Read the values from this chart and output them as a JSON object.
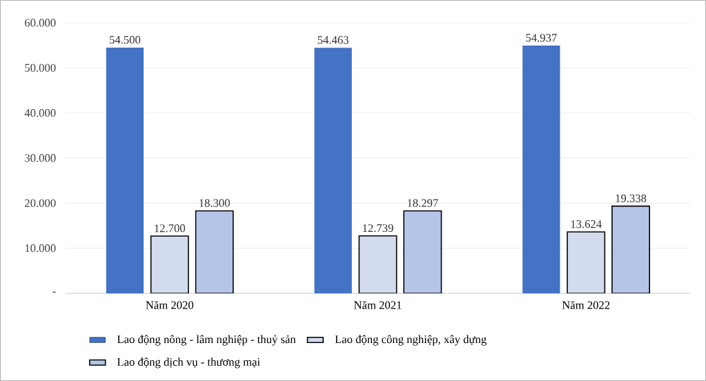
{
  "chart_data": {
    "type": "bar",
    "categories": [
      "Năm 2020",
      "Năm 2021",
      "Năm 2022"
    ],
    "series": [
      {
        "name": "Lao động nông - lâm nghiệp - thuỷ sản",
        "color": "#4472c4",
        "values": [
          54500,
          54463,
          54937
        ],
        "value_labels": [
          "54.500",
          "54.463",
          "54.937"
        ]
      },
      {
        "name": "Lao động công nghiệp, xây dựng",
        "color": "#d3dcef",
        "values": [
          12700,
          12739,
          13624
        ],
        "value_labels": [
          "12.700",
          "12.739",
          "13.624"
        ]
      },
      {
        "name": "Lao động dịch vụ - thương mại",
        "color": "#b4c5e8",
        "values": [
          18300,
          18297,
          19338
        ],
        "value_labels": [
          "18.300",
          "18.297",
          "19.338"
        ]
      }
    ],
    "ylim": [
      0,
      60000
    ],
    "yticks": [
      {
        "value": 0,
        "label": "-"
      },
      {
        "value": 10000,
        "label": "10.000"
      },
      {
        "value": 20000,
        "label": "20.000"
      },
      {
        "value": 30000,
        "label": "30.000"
      },
      {
        "value": 40000,
        "label": "40.000"
      },
      {
        "value": 50000,
        "label": "50.000"
      },
      {
        "value": 60000,
        "label": "60.000"
      }
    ],
    "grid": "y",
    "legend": "bottom"
  }
}
